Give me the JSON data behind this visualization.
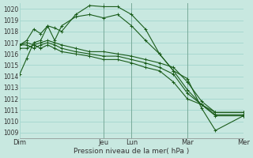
{
  "background_color": "#c8e8e0",
  "grid_color": "#a8d8d0",
  "line_color": "#1a5c1a",
  "title": "Pression niveau de la mer( hPa )",
  "ylim": [
    1008.5,
    1020.5
  ],
  "yticks": [
    1009,
    1010,
    1011,
    1012,
    1013,
    1014,
    1015,
    1016,
    1017,
    1018,
    1019,
    1020
  ],
  "day_labels": [
    "Dim",
    "Jeu",
    "Lun",
    "Mar",
    "Mer"
  ],
  "day_tick_positions": [
    0.0,
    3.0,
    4.0,
    6.0,
    8.0
  ],
  "vline_positions": [
    3.0,
    4.0,
    6.0,
    8.0
  ],
  "series": [
    [
      1014.2,
      1015.6,
      1017.0,
      1017.2,
      1018.5,
      1018.3,
      1018.0,
      1019.5,
      1020.3,
      1020.2,
      1020.2,
      1019.5,
      1018.2,
      1016.0,
      1014.5,
      1012.8,
      1011.5,
      1010.6,
      1010.6
    ],
    [
      1016.8,
      1017.2,
      1018.2,
      1017.8,
      1018.5,
      1017.2,
      1018.5,
      1019.3,
      1019.5,
      1019.2,
      1019.5,
      1018.5,
      1017.2,
      1016.0,
      1014.5,
      1013.8,
      1011.2,
      1009.2,
      1010.5
    ],
    [
      1016.8,
      1017.0,
      1016.8,
      1017.0,
      1017.2,
      1017.0,
      1016.8,
      1016.5,
      1016.2,
      1016.2,
      1016.0,
      1015.8,
      1015.5,
      1015.2,
      1014.8,
      1013.5,
      1011.8,
      1010.8,
      1010.8
    ],
    [
      1016.8,
      1016.8,
      1016.5,
      1016.8,
      1017.0,
      1016.8,
      1016.5,
      1016.2,
      1016.0,
      1015.8,
      1015.8,
      1015.5,
      1015.2,
      1014.8,
      1014.2,
      1012.5,
      1011.5,
      1010.8,
      1010.8
    ],
    [
      1016.5,
      1016.5,
      1016.8,
      1016.5,
      1016.8,
      1016.5,
      1016.2,
      1016.0,
      1015.8,
      1015.5,
      1015.5,
      1015.2,
      1014.8,
      1014.5,
      1013.5,
      1012.0,
      1011.5,
      1010.5,
      1010.5
    ]
  ],
  "x_values": [
    0,
    0.25,
    0.5,
    0.75,
    1.0,
    1.25,
    1.5,
    2.0,
    2.5,
    3.0,
    3.5,
    4.0,
    4.5,
    5.0,
    5.5,
    6.0,
    6.5,
    7.0,
    8.0
  ],
  "xlim": [
    0,
    8.0
  ],
  "figsize": [
    3.2,
    2.0
  ],
  "dpi": 100
}
